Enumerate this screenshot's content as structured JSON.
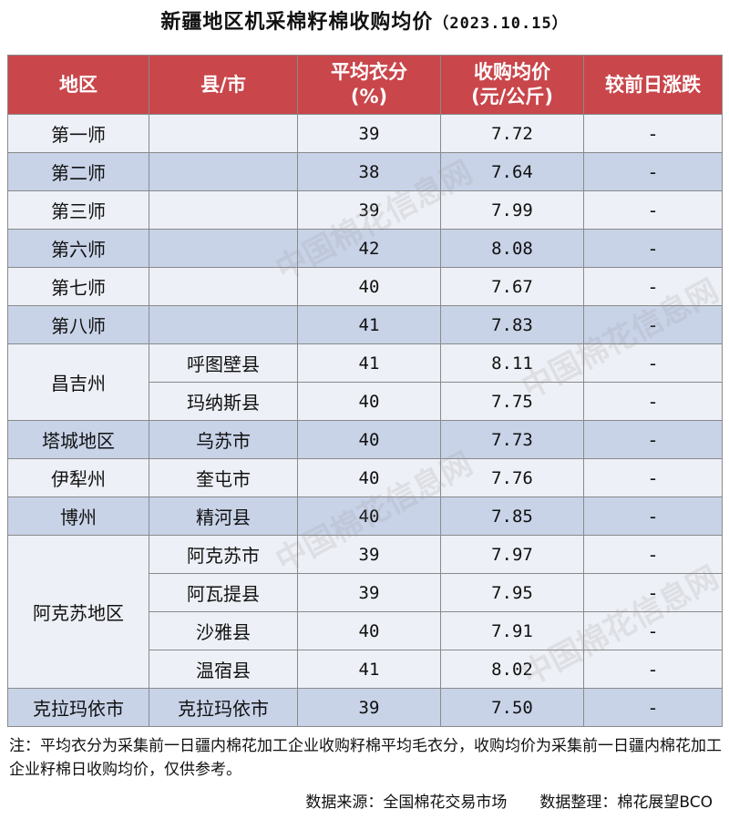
{
  "title": "新疆地区机采棉籽棉收购均价",
  "date": "（2023.10.15）",
  "headers": {
    "region": "地区",
    "county": "县/市",
    "lint_line1": "平均衣分",
    "lint_line2": "(%)",
    "price_line1": "收购均价",
    "price_line2": "(元/公斤)",
    "change": "较前日涨跌"
  },
  "rows": [
    {
      "region": "第一师",
      "county": "",
      "lint": "39",
      "price": "7.72",
      "change": "-"
    },
    {
      "region": "第二师",
      "county": "",
      "lint": "38",
      "price": "7.64",
      "change": "-"
    },
    {
      "region": "第三师",
      "county": "",
      "lint": "39",
      "price": "7.99",
      "change": "-"
    },
    {
      "region": "第六师",
      "county": "",
      "lint": "42",
      "price": "8.08",
      "change": "-"
    },
    {
      "region": "第七师",
      "county": "",
      "lint": "40",
      "price": "7.67",
      "change": "-"
    },
    {
      "region": "第八师",
      "county": "",
      "lint": "41",
      "price": "7.83",
      "change": "-"
    },
    {
      "region": "昌吉州",
      "county": "呼图壁县",
      "lint": "41",
      "price": "8.11",
      "change": "-"
    },
    {
      "region": "",
      "county": "玛纳斯县",
      "lint": "40",
      "price": "7.75",
      "change": "-"
    },
    {
      "region": "塔城地区",
      "county": "乌苏市",
      "lint": "40",
      "price": "7.73",
      "change": "-"
    },
    {
      "region": "伊犁州",
      "county": "奎屯市",
      "lint": "40",
      "price": "7.76",
      "change": "-"
    },
    {
      "region": "博州",
      "county": "精河县",
      "lint": "40",
      "price": "7.85",
      "change": "-"
    },
    {
      "region": "阿克苏地区",
      "county": "阿克苏市",
      "lint": "39",
      "price": "7.97",
      "change": "-"
    },
    {
      "region": "",
      "county": "阿瓦提县",
      "lint": "39",
      "price": "7.95",
      "change": "-"
    },
    {
      "region": "",
      "county": "沙雅县",
      "lint": "40",
      "price": "7.91",
      "change": "-"
    },
    {
      "region": "",
      "county": "温宿县",
      "lint": "41",
      "price": "8.02",
      "change": "-"
    },
    {
      "region": "克拉玛依市",
      "county": "克拉玛依市",
      "lint": "39",
      "price": "7.50",
      "change": "-"
    }
  ],
  "note": "注：平均衣分为采集前一日疆内棉花加工企业收购籽棉平均毛衣分，收购均价为采集前一日疆内棉花加工企业籽棉日收购均价，仅供参考。",
  "source": "数据来源：全国棉花交易市场",
  "compiler": "数据整理：棉花展望BCO",
  "watermark": "中国棉花信息网",
  "colors": {
    "header": "#c9464b",
    "row_light": "#edf0f6",
    "row_dark": "#c8d3e8"
  }
}
